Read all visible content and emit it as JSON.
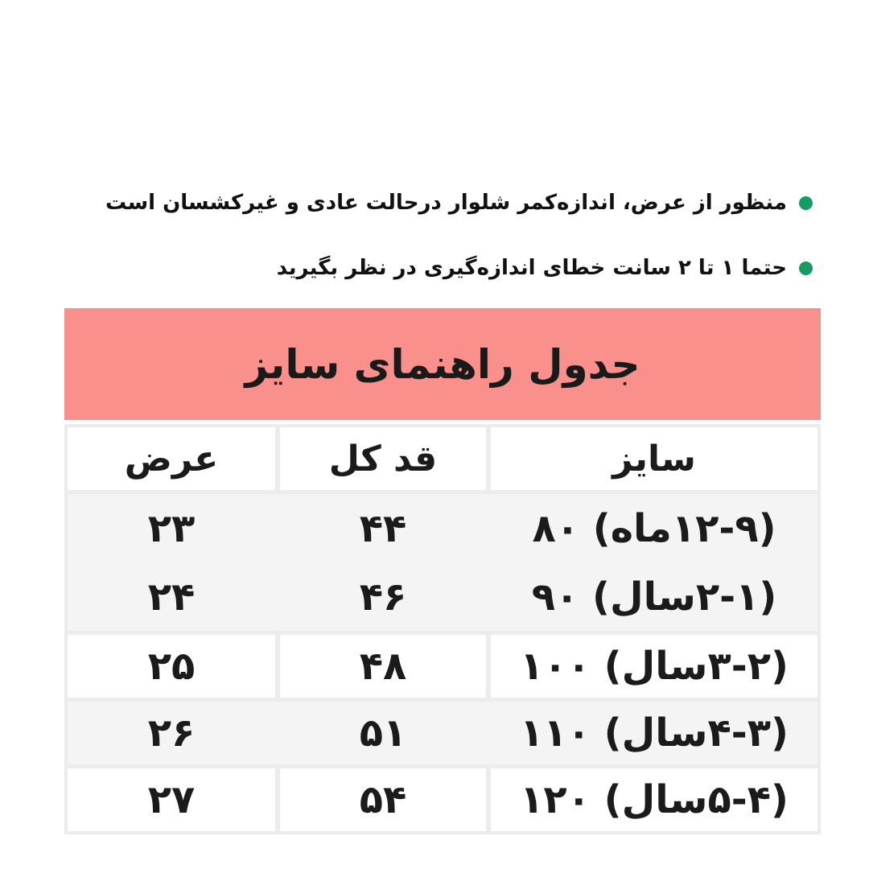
{
  "colors": {
    "page_bg": "#ffffff",
    "bullet_green": "#169b62",
    "banner_pink": "#f9908c",
    "table_frame_gray": "#ececec",
    "row_band_gray": "#f4f4f4",
    "text": "#1b1b1b"
  },
  "notes": {
    "items": [
      {
        "text": "منظور از عرض، اندازه‌کمر شلوار درحالت عادی و غیرکشسان است"
      },
      {
        "text": "حتما ۱ تا ۲ سانت خطای اندازه‌گیری در نظر بگیرید"
      }
    ]
  },
  "size_table": {
    "title": "جدول راهنمای سایز",
    "columns": [
      "سایز",
      "قد کل",
      "عرض"
    ],
    "rows": [
      {
        "size": "(۱۲-۹ماه) ۸۰",
        "length": "۴۴",
        "width": "۲۳"
      },
      {
        "size": "(۲-۱سال) ۹۰",
        "length": "۴۶",
        "width": "۲۴"
      },
      {
        "size": "(۳-۲سال) ۱۰۰",
        "length": "۴۸",
        "width": "۲۵"
      },
      {
        "size": "(۴-۳سال) ۱۱۰",
        "length": "۵۱",
        "width": "۲۶"
      },
      {
        "size": "(۵-۴سال) ۱۲۰",
        "length": "۵۴",
        "width": "۲۷"
      }
    ]
  },
  "chart_data": {
    "type": "table",
    "title": "جدول راهنمای سایز (Size Guide Table)",
    "columns": [
      "سایز (size)",
      "قد کل (total length, cm)",
      "عرض (width, cm)"
    ],
    "rows": [
      [
        "۸۰ — 80 (9-12 ماه / months)",
        44,
        23
      ],
      [
        "۹۰ — 90 (1-2 سال / years)",
        46,
        24
      ],
      [
        "۱۰۰ — 100 (2-3 سال / years)",
        48,
        25
      ],
      [
        "۱۱۰ — 110 (3-4 سال / years)",
        51,
        26
      ],
      [
        "۱۲۰ — 120 (4-5 سال / years)",
        54,
        27
      ]
    ],
    "layout": "RTL table; columns right-to-left: size, total length, width; zebra rows light gray"
  }
}
